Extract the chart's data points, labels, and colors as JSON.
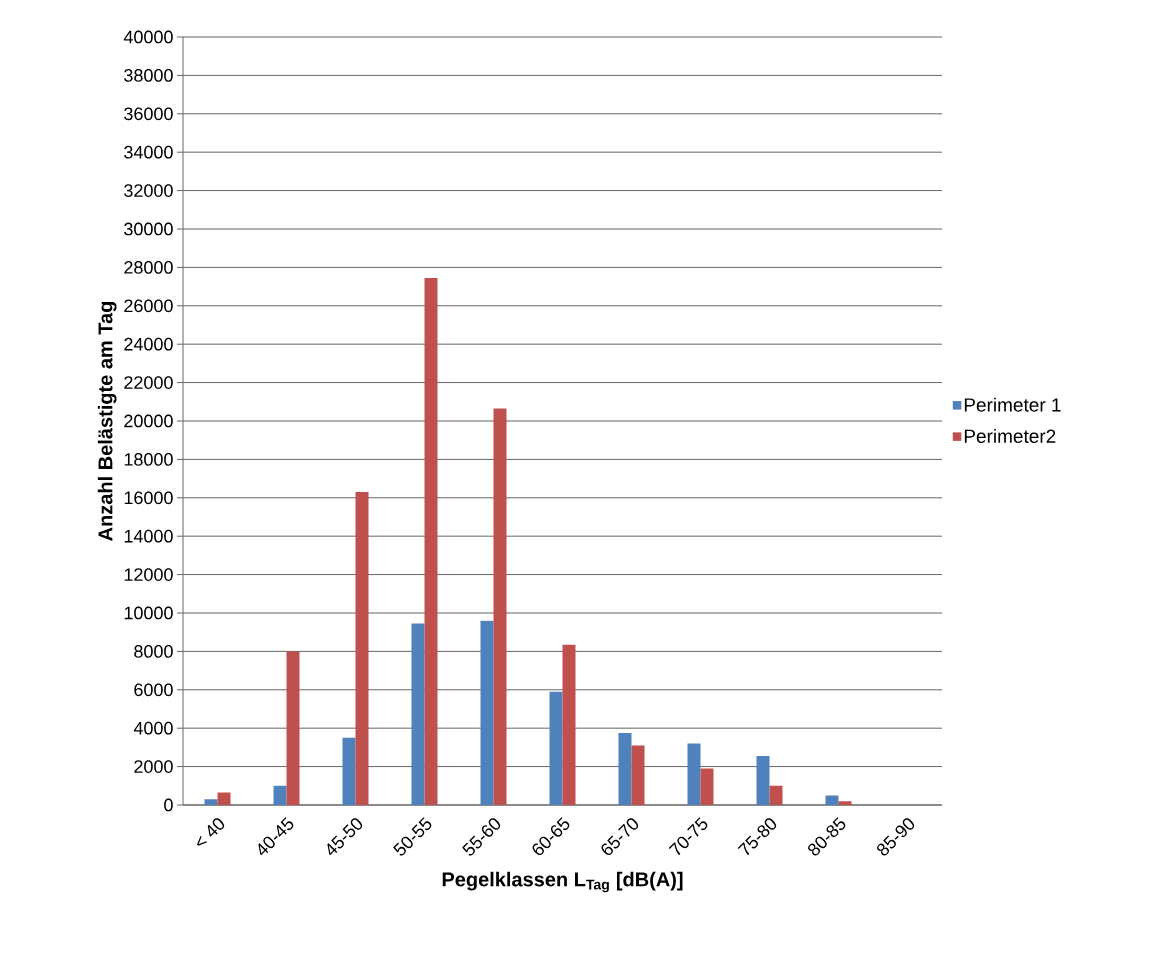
{
  "chart_data": {
    "type": "bar",
    "xlabel": "Pegelklassen L$_{Tag}$ [dB(A)]",
    "ylabel": "Anzahl Belästigte am Tag",
    "categories": [
      "< 40",
      "40-45",
      "45-50",
      "50-55",
      "55-60",
      "60-65",
      "65-70",
      "70-75",
      "75-80",
      "80-85",
      "85-90"
    ],
    "series": [
      {
        "name": "Perimeter 1",
        "color": "#4f81bd",
        "values": [
          300,
          1000,
          3500,
          9450,
          9600,
          5900,
          3750,
          3200,
          2550,
          500,
          0
        ]
      },
      {
        "name": "Perimeter2",
        "color": "#c0504d",
        "values": [
          650,
          8000,
          16300,
          27450,
          20650,
          8350,
          3100,
          1900,
          1000,
          200,
          0
        ]
      }
    ],
    "ylim": [
      0,
      40000
    ],
    "yticks": [
      0,
      2000,
      4000,
      6000,
      8000,
      10000,
      12000,
      14000,
      16000,
      18000,
      20000,
      22000,
      24000,
      26000,
      28000,
      30000,
      32000,
      34000,
      36000,
      38000,
      40000
    ],
    "grid": "y",
    "legend": "right"
  }
}
